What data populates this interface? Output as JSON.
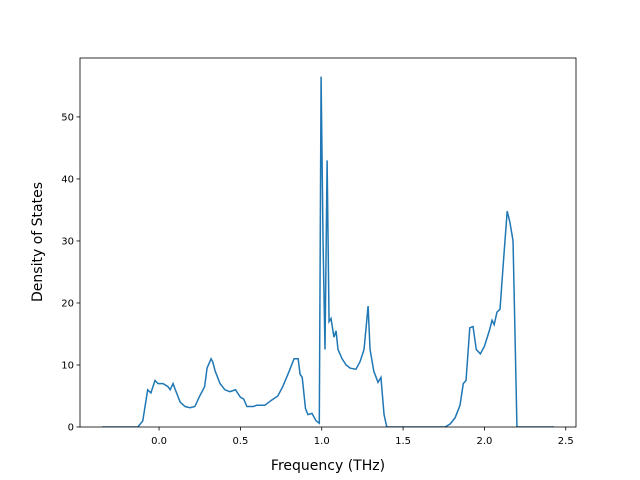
{
  "chart_data": {
    "type": "line",
    "xlabel": "Frequency (THz)",
    "ylabel": "Density of States",
    "xlim": [
      -0.486,
      2.563
    ],
    "ylim": [
      0,
      59.5
    ],
    "xticks": [
      {
        "value": 0,
        "label": "0.0"
      },
      {
        "value": 0.5,
        "label": "0.5"
      },
      {
        "value": 1,
        "label": "1.0"
      },
      {
        "value": 1.5,
        "label": "1.5"
      },
      {
        "value": 2,
        "label": "2.0"
      },
      {
        "value": 2.5,
        "label": "2.5"
      }
    ],
    "yticks": [
      0,
      10,
      20,
      30,
      40,
      50
    ],
    "grid": false,
    "series": [
      {
        "color": "#1f77b4",
        "x": [
          -0.35,
          -0.13,
          -0.1,
          -0.07,
          -0.05,
          -0.025,
          -0.006,
          0.025,
          0.055,
          0.068,
          0.086,
          0.1,
          0.13,
          0.16,
          0.19,
          0.22,
          0.25,
          0.28,
          0.295,
          0.32,
          0.33,
          0.345,
          0.375,
          0.405,
          0.435,
          0.47,
          0.5,
          0.52,
          0.54,
          0.58,
          0.6,
          0.65,
          0.69,
          0.73,
          0.76,
          0.8,
          0.83,
          0.855,
          0.867,
          0.88,
          0.9,
          0.915,
          0.94,
          0.965,
          0.985,
          0.996,
          1.008,
          1.02,
          1.033,
          1.045,
          1.057,
          1.075,
          1.088,
          1.1,
          1.125,
          1.15,
          1.174,
          1.21,
          1.235,
          1.26,
          1.285,
          1.297,
          1.32,
          1.346,
          1.364,
          1.383,
          1.4,
          1.758,
          1.79,
          1.82,
          1.85,
          1.87,
          1.887,
          1.91,
          1.93,
          1.95,
          1.975,
          2.0,
          2.03,
          2.047,
          2.06,
          2.077,
          2.096,
          2.115,
          2.14,
          2.157,
          2.176,
          2.2,
          2.428
        ],
        "values": [
          0,
          0,
          1,
          6,
          5.5,
          7.5,
          7,
          7,
          6.5,
          6,
          7,
          6,
          4,
          3.3,
          3.1,
          3.3,
          5,
          6.5,
          9.5,
          11,
          10.5,
          9,
          7,
          6,
          5.7,
          6,
          4.8,
          4.5,
          3.3,
          3.3,
          3.5,
          3.5,
          4.3,
          5,
          6.5,
          9,
          11,
          11,
          8.5,
          8,
          3,
          2,
          2.2,
          1,
          0.6,
          56.5,
          30,
          12.5,
          43,
          17,
          17.5,
          14.5,
          15.5,
          12.5,
          11,
          10,
          9.5,
          9.3,
          10.5,
          12.5,
          19.5,
          12.5,
          9,
          7.2,
          8,
          2,
          0,
          0,
          0.5,
          1.5,
          3.5,
          7,
          7.5,
          16,
          16.2,
          12.5,
          11.8,
          13,
          15.5,
          17.2,
          16.5,
          18.5,
          19,
          26,
          34.8,
          33,
          30,
          0,
          0
        ]
      }
    ]
  }
}
